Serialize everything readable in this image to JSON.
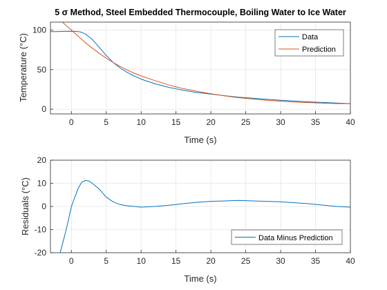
{
  "colors": {
    "data": "#0072BD",
    "prediction": "#D95319",
    "grid": "#dcdcdc",
    "axis": "#262626"
  },
  "chart_data": [
    {
      "type": "line",
      "title": "5 σ Method, Steel Embedded Thermocouple, Boiling Water to Ice Water",
      "xlabel": "Time (s)",
      "ylabel": "Temperature (°C)",
      "xlim": [
        -3,
        40
      ],
      "ylim": [
        -6,
        110
      ],
      "xticks": [
        "0",
        "5",
        "10",
        "15",
        "20",
        "25",
        "30",
        "35",
        "40"
      ],
      "yticks": [
        "0",
        "50",
        "100"
      ],
      "grid": true,
      "legend": {
        "placement": "top-right",
        "entries": [
          "Data",
          "Prediction"
        ]
      },
      "series": [
        {
          "name": "Data",
          "x": [
            -3,
            -2,
            -1,
            0,
            1,
            1.5,
            2,
            3,
            4,
            5,
            6,
            7,
            8,
            9,
            10,
            12,
            14,
            16,
            18,
            20,
            22,
            24,
            26,
            28,
            30,
            32,
            34,
            36,
            38,
            40
          ],
          "y": [
            98,
            98,
            98.3,
            98.5,
            98,
            97,
            95,
            88,
            78,
            68,
            59,
            52,
            46.5,
            42,
            38,
            32,
            27.5,
            24,
            21,
            19,
            17,
            15.2,
            13.8,
            12.5,
            11.2,
            10.2,
            9.3,
            8.5,
            7.7,
            7
          ]
        },
        {
          "name": "Prediction",
          "x": [
            -1.3,
            0,
            1,
            2,
            3,
            4,
            5,
            6,
            7,
            8,
            9,
            10,
            12,
            14,
            16,
            18,
            20,
            22,
            24,
            26,
            28,
            30,
            32,
            34,
            36,
            38,
            40
          ],
          "y": [
            110,
            100,
            92,
            84,
            77,
            70.5,
            64.5,
            59,
            54,
            49.5,
            45.5,
            42,
            36,
            30.5,
            26,
            22.5,
            19.5,
            16.8,
            14.5,
            12.8,
            11.3,
            10.1,
            9.1,
            8.3,
            7.6,
            7.1,
            6.8
          ]
        }
      ]
    },
    {
      "type": "line",
      "title": "",
      "xlabel": "Time (s)",
      "ylabel": "Residuals (°C)",
      "xlim": [
        -3,
        40
      ],
      "ylim": [
        -20,
        20
      ],
      "xticks": [
        "0",
        "5",
        "10",
        "15",
        "20",
        "25",
        "30",
        "35",
        "40"
      ],
      "yticks": [
        "-20",
        "-10",
        "0",
        "10",
        "20"
      ],
      "grid": true,
      "legend": {
        "placement": "bottom-right",
        "entries": [
          "Data Minus Prediction"
        ]
      },
      "series": [
        {
          "name": "Data Minus Prediction",
          "x": [
            -1.6,
            -1,
            -0.5,
            0,
            0.5,
            1,
            1.5,
            2,
            2.5,
            3,
            4,
            5,
            6,
            7,
            8,
            9,
            10,
            12,
            14,
            16,
            18,
            20,
            22,
            24,
            26,
            28,
            30,
            32,
            34,
            36,
            38,
            40
          ],
          "y": [
            -20,
            -13,
            -7,
            0,
            4,
            8,
            10.5,
            11.2,
            11,
            10,
            7.5,
            4,
            2,
            0.8,
            0.3,
            0,
            -0.3,
            0,
            0.5,
            1.2,
            1.8,
            2.2,
            2.4,
            2.6,
            2.4,
            2.2,
            2,
            1.6,
            1.2,
            0.6,
            0,
            -0.3
          ]
        }
      ]
    }
  ]
}
